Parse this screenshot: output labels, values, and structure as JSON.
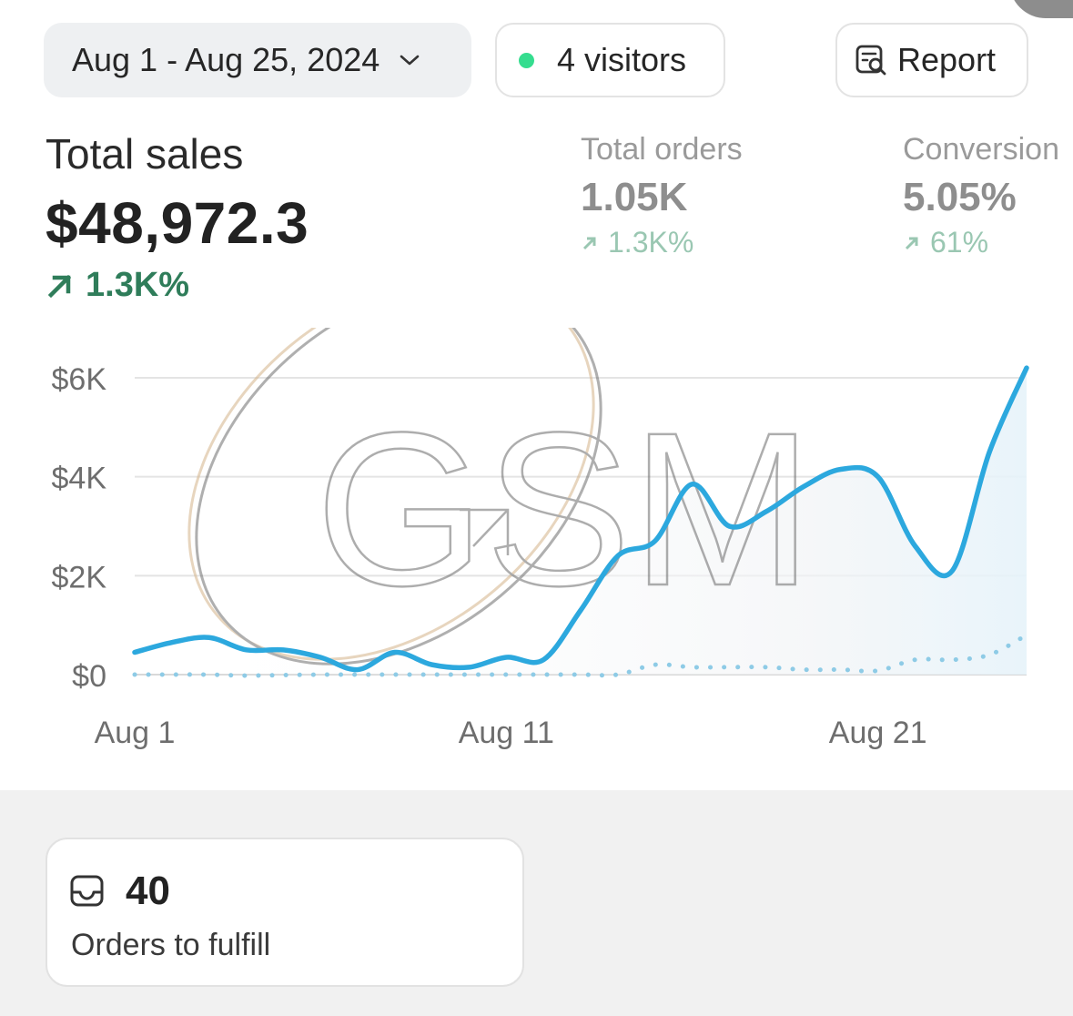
{
  "header": {
    "date_range_label": "Aug 1 - Aug 25, 2024",
    "visitors_label": "4 visitors",
    "report_label": "Report"
  },
  "metrics": {
    "total_sales": {
      "label": "Total sales",
      "value": "$48,972.3",
      "change": "1.3K%"
    },
    "total_orders": {
      "label": "Total orders",
      "value": "1.05K",
      "change": "1.3K%"
    },
    "conversion": {
      "label": "Conversion",
      "value": "5.05%",
      "change": "61%"
    }
  },
  "colors": {
    "accent_line": "#2ca8de",
    "positive": "#2f7d5a",
    "live_dot": "#35dd8f"
  },
  "watermark": "GSM",
  "icons": [
    "chevron-down-icon",
    "report-search-icon",
    "arrow-up-right-icon",
    "inbox-tray-icon"
  ],
  "chart_data": {
    "type": "line",
    "y_ticks": [
      "$0",
      "$2K",
      "$4K",
      "$6K"
    ],
    "x_ticks": [
      "Aug 1",
      "Aug 11",
      "Aug 21"
    ],
    "ylim": [
      0,
      6000
    ],
    "x": [
      1,
      2,
      3,
      4,
      5,
      6,
      7,
      8,
      9,
      10,
      11,
      12,
      13,
      14,
      15,
      16,
      17,
      18,
      19,
      20,
      21,
      22,
      23,
      24,
      25
    ],
    "series": [
      {
        "style": "solid",
        "values": [
          450,
          650,
          750,
          500,
          500,
          350,
          100,
          450,
          200,
          150,
          350,
          300,
          1300,
          2400,
          2700,
          3850,
          3000,
          3300,
          3800,
          4150,
          4000,
          2600,
          2100,
          4500,
          6200
        ]
      },
      {
        "style": "dotted",
        "values": [
          0,
          0,
          0,
          -20,
          -10,
          0,
          0,
          0,
          0,
          0,
          0,
          0,
          0,
          0,
          200,
          150,
          150,
          150,
          100,
          100,
          80,
          300,
          300,
          400,
          800
        ]
      }
    ]
  },
  "fulfill": {
    "count": "40",
    "label": "Orders to fulfill"
  }
}
